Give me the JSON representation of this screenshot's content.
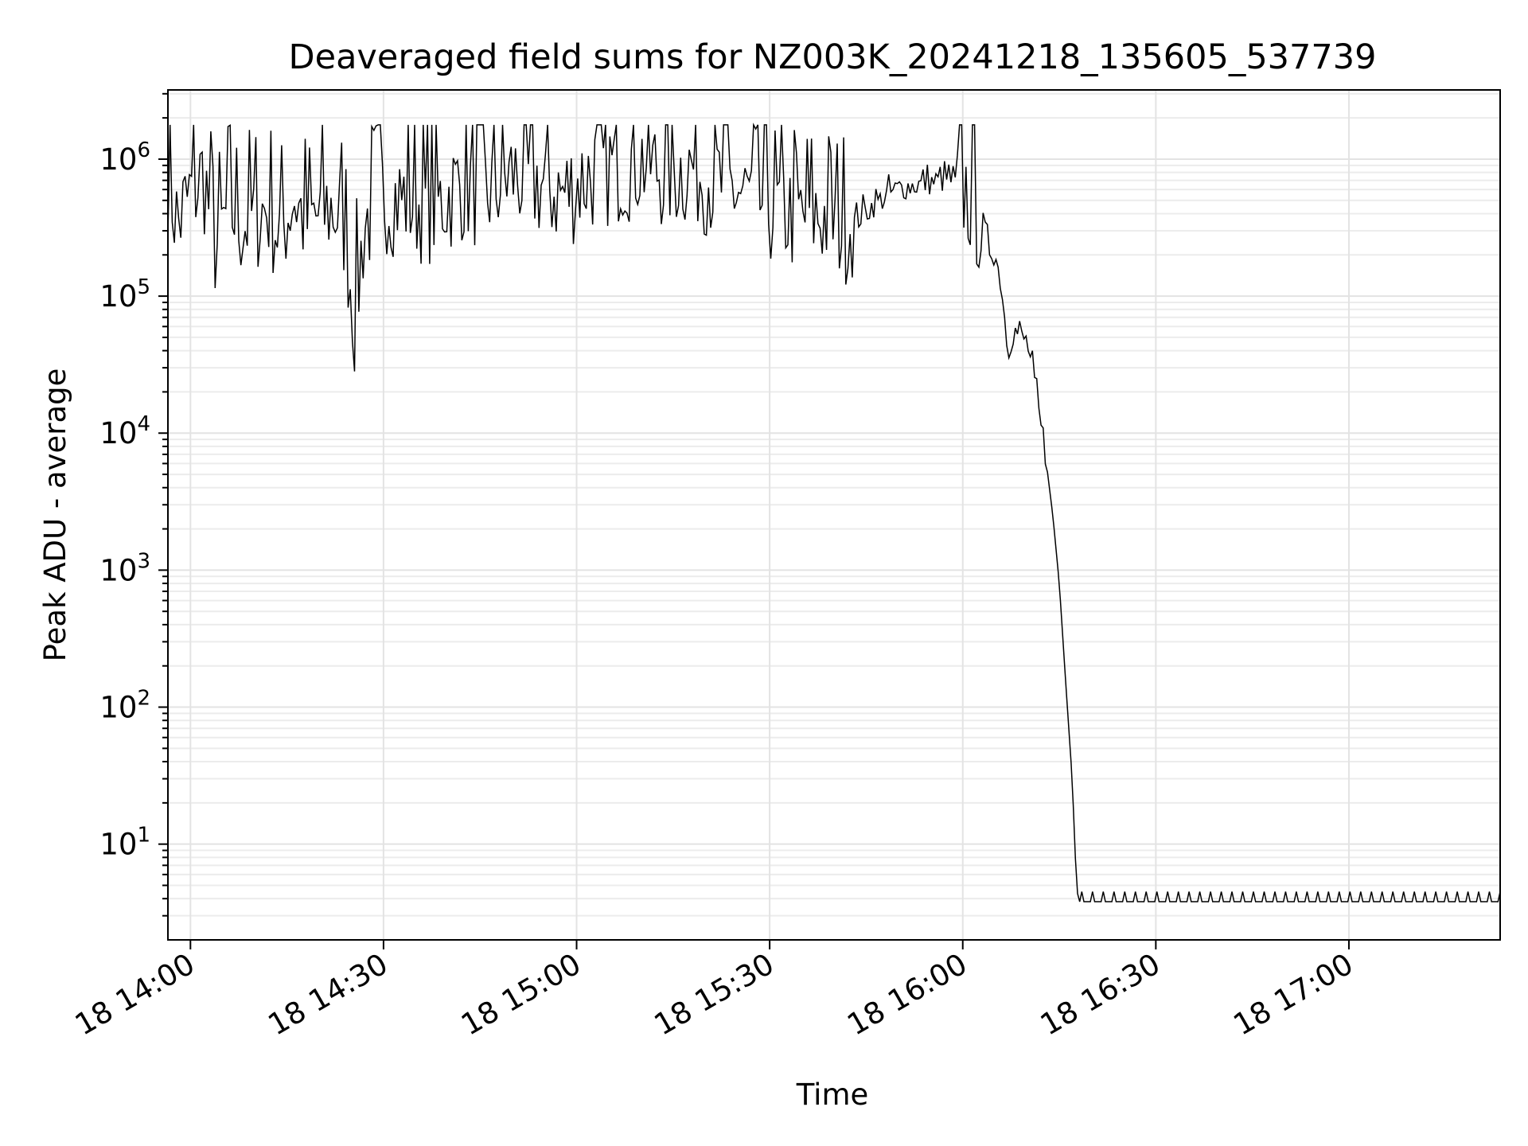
{
  "chart_data": {
    "type": "line",
    "title": "Deaveraged field sums for NZ003K_20241218_135605_537739",
    "xlabel": "Time",
    "ylabel": "Peak ADU - average",
    "y_scale": "log",
    "ylim": [
      2,
      3200000
    ],
    "xlim": [
      "2024-12-18 13:56:30",
      "2024-12-18 17:23:30"
    ],
    "grid": true,
    "x_ticks": [
      {
        "value": "2024-12-18 14:00",
        "label": "18 14:00"
      },
      {
        "value": "2024-12-18 14:30",
        "label": "18 14:30"
      },
      {
        "value": "2024-12-18 15:00",
        "label": "18 15:00"
      },
      {
        "value": "2024-12-18 15:30",
        "label": "18 15:30"
      },
      {
        "value": "2024-12-18 16:00",
        "label": "18 16:00"
      },
      {
        "value": "2024-12-18 16:30",
        "label": "18 16:30"
      },
      {
        "value": "2024-12-18 17:00",
        "label": "18 17:00"
      }
    ],
    "y_ticks": [
      {
        "value": 10,
        "base": "10",
        "exp": "1"
      },
      {
        "value": 100,
        "base": "10",
        "exp": "2"
      },
      {
        "value": 1000,
        "base": "10",
        "exp": "3"
      },
      {
        "value": 10000,
        "base": "10",
        "exp": "4"
      },
      {
        "value": 100000,
        "base": "10",
        "exp": "5"
      },
      {
        "value": 1000000,
        "base": "10",
        "exp": "6"
      }
    ],
    "series": [
      {
        "color": "#000000",
        "x": [
          "2024-12-18 13:56:30",
          "2024-12-18 13:58:00",
          "2024-12-18 14:00:00",
          "2024-12-18 14:02:00",
          "2024-12-18 14:04:00",
          "2024-12-18 14:06:00",
          "2024-12-18 14:08:00",
          "2024-12-18 14:10:00",
          "2024-12-18 14:12:00",
          "2024-12-18 14:14:00",
          "2024-12-18 14:16:00",
          "2024-12-18 14:18:00",
          "2024-12-18 14:20:00",
          "2024-12-18 14:22:00",
          "2024-12-18 14:24:00",
          "2024-12-18 14:25:30",
          "2024-12-18 14:27:00",
          "2024-12-18 14:30:00",
          "2024-12-18 14:34:00",
          "2024-12-18 14:38:00",
          "2024-12-18 14:42:00",
          "2024-12-18 14:46:00",
          "2024-12-18 14:50:00",
          "2024-12-18 14:54:00",
          "2024-12-18 14:58:00",
          "2024-12-18 15:02:00",
          "2024-12-18 15:06:00",
          "2024-12-18 15:10:00",
          "2024-12-18 15:14:00",
          "2024-12-18 15:18:00",
          "2024-12-18 15:22:00",
          "2024-12-18 15:26:00",
          "2024-12-18 15:30:00",
          "2024-12-18 15:34:00",
          "2024-12-18 15:38:00",
          "2024-12-18 15:42:00",
          "2024-12-18 15:46:00",
          "2024-12-18 15:50:00",
          "2024-12-18 15:54:00",
          "2024-12-18 15:58:00",
          "2024-12-18 16:00:00",
          "2024-12-18 16:02:00",
          "2024-12-18 16:03:00",
          "2024-12-18 16:04:00",
          "2024-12-18 16:05:00",
          "2024-12-18 16:06:00",
          "2024-12-18 16:07:00",
          "2024-12-18 16:08:00",
          "2024-12-18 16:09:00",
          "2024-12-18 16:10:00",
          "2024-12-18 16:11:00",
          "2024-12-18 16:12:00",
          "2024-12-18 16:13:00",
          "2024-12-18 16:14:00",
          "2024-12-18 16:15:00",
          "2024-12-18 16:16:00",
          "2024-12-18 16:17:00",
          "2024-12-18 16:17:40",
          "2024-12-18 16:18:00",
          "2024-12-18 16:20:00",
          "2024-12-18 16:30:00",
          "2024-12-18 16:40:00",
          "2024-12-18 16:50:00",
          "2024-12-18 17:00:00",
          "2024-12-18 17:10:00",
          "2024-12-18 17:20:00",
          "2024-12-18 17:23:30"
        ],
        "values": [
          700000,
          300000,
          500000,
          700000,
          200000,
          400000,
          300000,
          350000,
          400000,
          250000,
          500000,
          300000,
          350000,
          400000,
          300000,
          60000,
          300000,
          500000,
          450000,
          400000,
          600000,
          500000,
          700000,
          600000,
          500000,
          700000,
          800000,
          900000,
          700000,
          800000,
          600000,
          500000,
          400000,
          350000,
          350000,
          300000,
          450000,
          600000,
          650000,
          700000,
          550000,
          400000,
          300000,
          220000,
          200000,
          120000,
          40000,
          55000,
          50000,
          45000,
          25000,
          12000,
          6000,
          2500,
          800,
          150,
          30,
          5,
          3.8,
          3.8,
          3.8,
          3.8,
          3.8,
          3.8,
          3.8,
          3.8,
          3.8
        ]
      }
    ]
  }
}
